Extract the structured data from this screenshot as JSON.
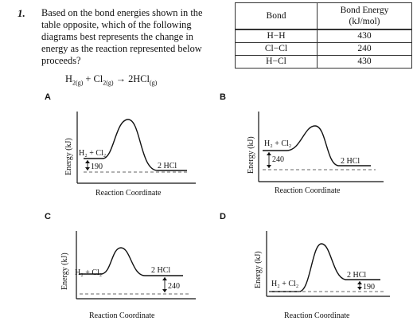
{
  "question": {
    "number": "1.",
    "text": "Based on the bond energies shown in the table opposite, which of the following diagrams best represents the change in energy as the reaction represented below proceeds?"
  },
  "equation": {
    "r1": "H",
    "r1_sub": "2(g)",
    "plus": " + ",
    "r2": "Cl",
    "r2_sub": "2(g)",
    "arrow": " → ",
    "product": "2HCl",
    "product_sub": "(g)"
  },
  "table": {
    "header_bond": "Bond",
    "header_energy_line1": "Bond Energy",
    "header_energy_line2": "(kJ/mol)",
    "rows": [
      {
        "bond": "H−H",
        "energy": "430"
      },
      {
        "bond": "Cl−Cl",
        "energy": "240"
      },
      {
        "bond": "H−Cl",
        "energy": "430"
      }
    ]
  },
  "diagrams": [
    {
      "letter": "A",
      "reactants": "H₂ + Cl₂",
      "products": "2 HCl",
      "delta": "190",
      "ylabel": "Energy (kJ)",
      "xlabel": "Reaction Coordinate"
    },
    {
      "letter": "B",
      "reactants": "H₂ + Cl₂",
      "products": "2 HCl",
      "delta": "240",
      "ylabel": "Energy (kJ)",
      "xlabel": "Reaction Coordinate"
    },
    {
      "letter": "C",
      "reactants": "H₂ + Cl₂",
      "products": "2 HCl",
      "delta": "240",
      "ylabel": "Energy (kJ)",
      "xlabel": "Reaction Coordinate"
    },
    {
      "letter": "D",
      "reactants": "H₂ + Cl₂",
      "products": "2 HCl",
      "delta": "190",
      "ylabel": "Energy (kJ)",
      "xlabel": "Reaction Coordinate"
    }
  ]
}
